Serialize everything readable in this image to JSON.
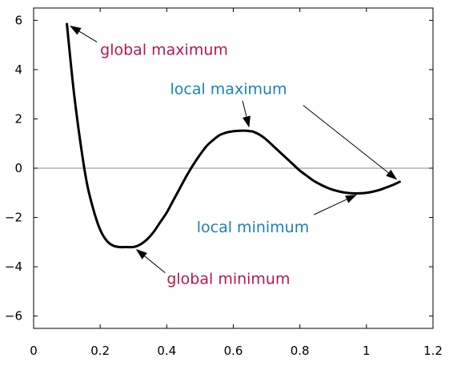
{
  "chart_data": {
    "type": "line",
    "title": "",
    "xlabel": "",
    "ylabel": "",
    "xlim": [
      0,
      1.2
    ],
    "ylim": [
      -6.5,
      6.5
    ],
    "grid": false,
    "zero_line": true,
    "x_ticks": [
      {
        "value": 0,
        "label": "0"
      },
      {
        "value": 0.2,
        "label": "0.2"
      },
      {
        "value": 0.4,
        "label": "0.4"
      },
      {
        "value": 0.6,
        "label": "0.6"
      },
      {
        "value": 0.8,
        "label": "0.8"
      },
      {
        "value": 1,
        "label": "1"
      },
      {
        "value": 1.2,
        "label": "1.2"
      }
    ],
    "y_ticks": [
      {
        "value": 6,
        "label": "6"
      },
      {
        "value": 4,
        "label": "4"
      },
      {
        "value": 2,
        "label": "2"
      },
      {
        "value": 0,
        "label": "0"
      },
      {
        "value": -2,
        "label": "−2"
      },
      {
        "value": -4,
        "label": "−4"
      },
      {
        "value": -6,
        "label": "−6"
      }
    ],
    "series": [
      {
        "color": "#000000",
        "x": [
          0.1,
          0.12,
          0.14,
          0.16,
          0.18,
          0.2,
          0.22,
          0.24,
          0.26,
          0.28,
          0.3,
          0.32,
          0.34,
          0.36,
          0.38,
          0.4,
          0.42,
          0.44,
          0.46,
          0.48,
          0.5,
          0.52,
          0.54,
          0.56,
          0.58,
          0.6,
          0.62,
          0.64,
          0.65,
          0.66,
          0.68,
          0.7,
          0.72,
          0.74,
          0.76,
          0.78,
          0.8,
          0.82,
          0.84,
          0.86,
          0.88,
          0.9,
          0.92,
          0.94,
          0.96,
          0.98,
          1.0,
          1.02,
          1.04,
          1.06,
          1.08,
          1.1
        ],
        "y": [
          5.85,
          3.2,
          1.1,
          -0.6,
          -1.7,
          -2.5,
          -2.95,
          -3.15,
          -3.2,
          -3.2,
          -3.2,
          -3.1,
          -2.9,
          -2.6,
          -2.2,
          -1.8,
          -1.3,
          -0.8,
          -0.3,
          0.15,
          0.55,
          0.9,
          1.15,
          1.35,
          1.45,
          1.5,
          1.52,
          1.52,
          1.5,
          1.48,
          1.35,
          1.15,
          0.9,
          0.65,
          0.4,
          0.15,
          -0.1,
          -0.3,
          -0.5,
          -0.65,
          -0.78,
          -0.88,
          -0.95,
          -1.0,
          -1.02,
          -1.02,
          -1.0,
          -0.95,
          -0.88,
          -0.78,
          -0.68,
          -0.55
        ]
      }
    ],
    "annotations": [
      {
        "id": "global-maximum",
        "text": "global maximum",
        "color": "#b5174e",
        "point": [
          0.1,
          5.85
        ],
        "text_at": [
          0.2,
          4.6
        ]
      },
      {
        "id": "local-maximum",
        "text": "local maximum",
        "color": "#1a7fc0",
        "point": [
          0.65,
          1.52
        ],
        "text_at": [
          0.41,
          3.0
        ]
      },
      {
        "id": "local-maximum-alt",
        "text": "",
        "color": "#000000",
        "point": [
          1.1,
          -0.55
        ],
        "text_at": [
          0.8,
          2.7
        ]
      },
      {
        "id": "local-minimum",
        "text": "local minimum",
        "color": "#1a7fc0",
        "point": [
          0.98,
          -1.02
        ],
        "text_at": [
          0.49,
          -2.6
        ]
      },
      {
        "id": "global-minimum",
        "text": "global minimum",
        "color": "#b5174e",
        "point": [
          0.3,
          -3.2
        ],
        "text_at": [
          0.4,
          -4.7
        ]
      }
    ]
  }
}
